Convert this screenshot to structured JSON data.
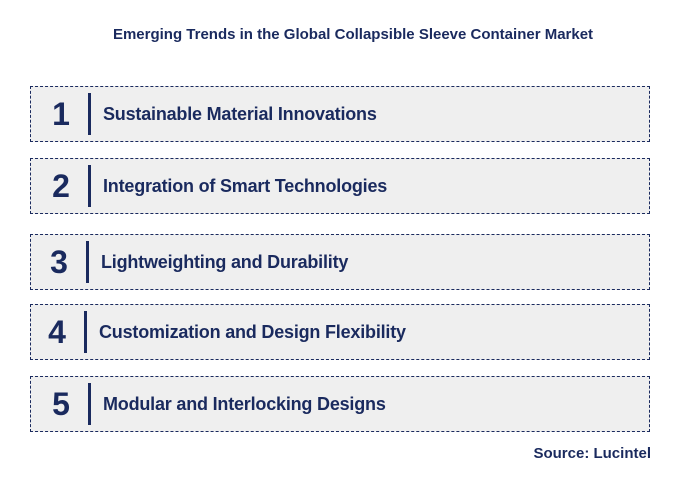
{
  "title": "Emerging Trends in the Global Collapsible Sleeve Container Market",
  "trends": [
    {
      "number": "1",
      "label": "Sustainable Material Innovations"
    },
    {
      "number": "2",
      "label": "Integration of Smart Technologies"
    },
    {
      "number": "3",
      "label": "Lightweighting and Durability"
    },
    {
      "number": "4",
      "label": "Customization and Design Flexibility"
    },
    {
      "number": "5",
      "label": "Modular and Interlocking Designs"
    }
  ],
  "source": "Source: Lucintel",
  "colors": {
    "text": "#1a2a5e",
    "box_fill": "#efefef",
    "background": "#ffffff"
  }
}
